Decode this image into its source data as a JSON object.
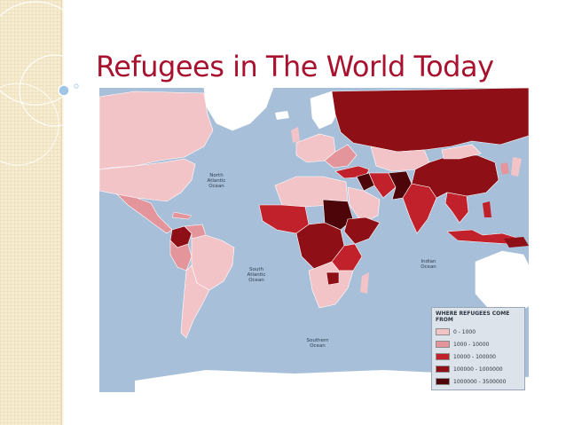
{
  "slide": {
    "title": "Refugees in The World Today"
  },
  "map": {
    "ocean_labels": {
      "north_atlantic": "North Atlantic Ocean",
      "south_atlantic": "South Atlantic Ocean",
      "indian": "Indian Ocean",
      "southern": "Southern Ocean"
    },
    "legend": {
      "title": "WHERE REFUGEES COME FROM",
      "items": [
        {
          "label": "0 - 1000",
          "color": "#f2c4c8"
        },
        {
          "label": "1000 - 10000",
          "color": "#e3959b"
        },
        {
          "label": "10000 - 100000",
          "color": "#c0212a"
        },
        {
          "label": "100000 - 1000000",
          "color": "#8e0f16"
        },
        {
          "label": "1000000 - 3500000",
          "color": "#4d0509"
        }
      ]
    },
    "colors": {
      "ocean": "#a8bfd9",
      "no_data": "#ffffff",
      "title": "#a8122f"
    }
  }
}
